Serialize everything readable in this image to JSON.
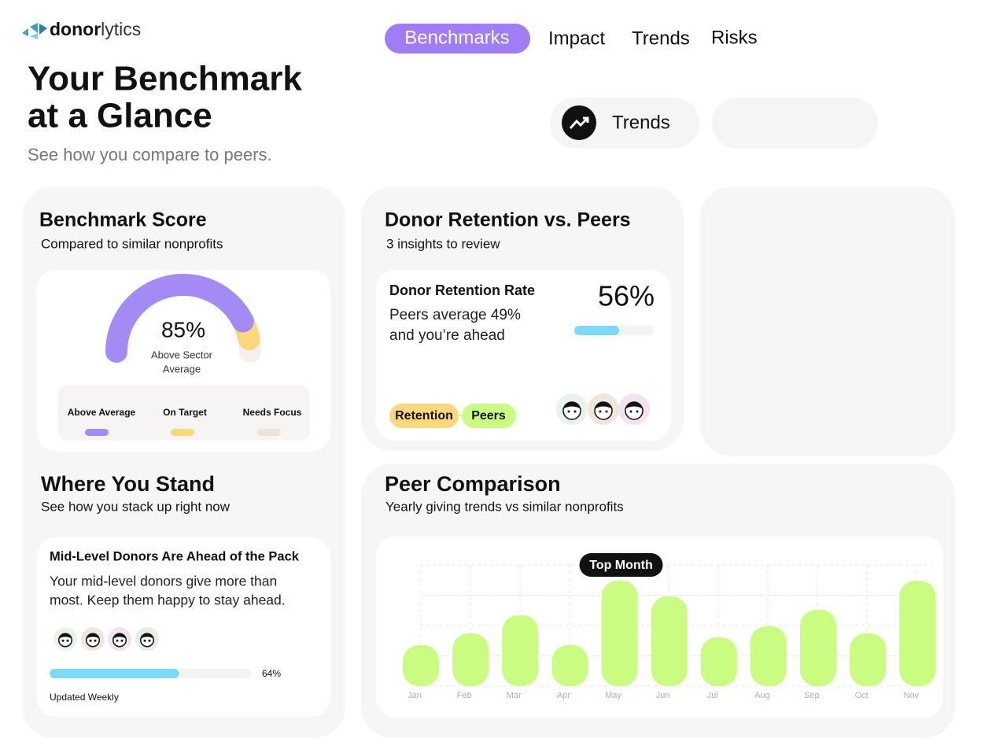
{
  "logo": {
    "bold": "donor",
    "light": "lytics"
  },
  "nav": [
    "Benchmarks",
    "Impact",
    "Trends",
    "Risks"
  ],
  "header": {
    "title": [
      "Your Benchmark",
      "at a Glance"
    ],
    "subtitle": "See how you compare to peers."
  },
  "quick_link": "Trends",
  "benchmark_score": {
    "title": "Benchmark Score",
    "subtitle": "Compared to similar nonprofits",
    "score": {
      "value": 85,
      "label": "85%"
    },
    "caption": [
      "Above Sector",
      "Average"
    ],
    "legend": [
      "Above Average",
      "On Target",
      "Needs Focus"
    ]
  },
  "retention": {
    "title": "Donor Retention vs. Peers",
    "subtitle": "3 insights to review",
    "card_title": "Donor Retention Rate",
    "body": [
      "Peers average 49%",
      "and you’re ahead"
    ],
    "rate": {
      "value": 56,
      "label": "56%"
    },
    "tags": [
      "Retention",
      "Peers"
    ]
  },
  "where_you_stand": {
    "title": "Where You Stand",
    "subtitle": "See how you stack up right now",
    "card_title": "Mid-Level Donors Are Ahead of the Pack",
    "body": [
      "Your mid-level donors give more than",
      "most. Keep them happy to stay ahead."
    ],
    "progress": {
      "value": 64,
      "label": "64%"
    },
    "footer": "Updated Weekly"
  },
  "peer_comparison": {
    "title": "Peer Comparison",
    "subtitle": "Yearly giving trends vs similar nonprofits",
    "chart": {
      "type": "bar",
      "categories": [
        "Jan",
        "Feb",
        "Mar",
        "Apr",
        "May",
        "Jun",
        "Jul",
        "Aug",
        "Sep",
        "Oct",
        "Nov"
      ],
      "values": [
        52,
        67,
        90,
        52,
        134,
        114,
        62,
        76,
        97,
        67,
        134
      ],
      "color": "#c9fc80",
      "annotation": "Top Month"
    }
  }
}
